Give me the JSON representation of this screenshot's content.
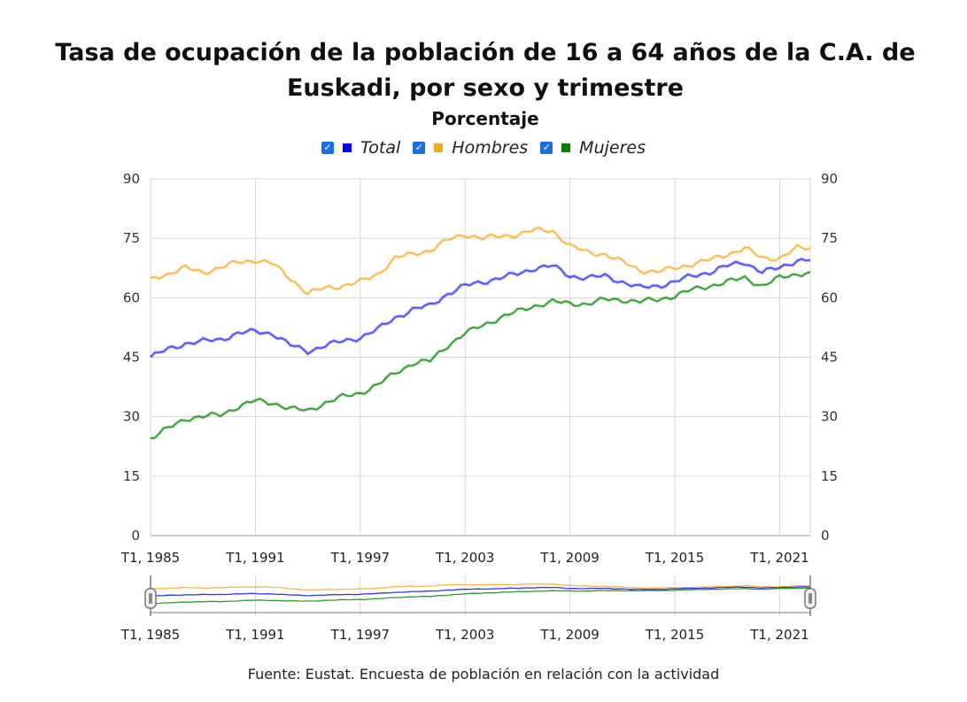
{
  "title_line1": "Tasa de ocupación de la población de 16 a 64 años de la C.A. de",
  "title_line2": "Euskadi, por sexo y trimestre",
  "subtitle": "Porcentaje",
  "source": "Fuente: Eustat. Encuesta de población en relación con la actividad",
  "legend": [
    {
      "name": "Total",
      "color": "#0000ff",
      "checked": true
    },
    {
      "name": "Hombres",
      "color": "#f5a623",
      "checked": true
    },
    {
      "name": "Mujeres",
      "color": "#008000",
      "checked": true
    }
  ],
  "chart_data": {
    "type": "line",
    "title": "Tasa de ocupación de la población de 16 a 64 años de la C.A. de Euskadi, por sexo y trimestre",
    "subtitle": "Porcentaje",
    "ylim": [
      0,
      90
    ],
    "yticks": [
      0,
      15,
      30,
      45,
      60,
      75,
      90
    ],
    "x_range": [
      "T1, 1985",
      "T4, 2022"
    ],
    "x_ticks": [
      "T1, 1985",
      "T1, 1991",
      "T1, 1997",
      "T1, 2003",
      "T1, 2009",
      "T1, 2015",
      "T1, 2021"
    ],
    "grid": true,
    "legend_position": "top",
    "navigator": true,
    "series": [
      {
        "name": "Total",
        "color": "#0000ff",
        "points": [
          [
            "T1, 1985",
            45
          ],
          [
            "T1, 1986",
            47
          ],
          [
            "T1, 1987",
            48.5
          ],
          [
            "T1, 1988",
            49
          ],
          [
            "T1, 1989",
            49.5
          ],
          [
            "T1, 1990",
            51
          ],
          [
            "T1, 1991",
            51.5
          ],
          [
            "T1, 1992",
            51
          ],
          [
            "T1, 1993",
            48
          ],
          [
            "T1, 1994",
            46.5
          ],
          [
            "T1, 1995",
            48
          ],
          [
            "T1, 1996",
            49
          ],
          [
            "T1, 1997",
            50
          ],
          [
            "T1, 1998",
            52
          ],
          [
            "T1, 1999",
            55
          ],
          [
            "T1, 2000",
            57
          ],
          [
            "T1, 2001",
            58
          ],
          [
            "T1, 2002",
            61
          ],
          [
            "T1, 2003",
            63
          ],
          [
            "T1, 2004",
            64
          ],
          [
            "T1, 2005",
            65
          ],
          [
            "T1, 2006",
            66
          ],
          [
            "T1, 2007",
            67.5
          ],
          [
            "T1, 2008",
            68
          ],
          [
            "T1, 2009",
            65.5
          ],
          [
            "T1, 2010",
            65
          ],
          [
            "T1, 2011",
            65.5
          ],
          [
            "T1, 2012",
            64
          ],
          [
            "T1, 2013",
            62.5
          ],
          [
            "T1, 2014",
            63
          ],
          [
            "T1, 2015",
            64
          ],
          [
            "T1, 2016",
            65.5
          ],
          [
            "T1, 2017",
            66.5
          ],
          [
            "T1, 2018",
            68
          ],
          [
            "T1, 2019",
            69
          ],
          [
            "T1, 2020",
            66.5
          ],
          [
            "T1, 2021",
            67.5
          ],
          [
            "T1, 2022",
            69.5
          ],
          [
            "T4, 2022",
            69.5
          ]
        ]
      },
      {
        "name": "Hombres",
        "color": "#f5a623",
        "points": [
          [
            "T1, 1985",
            65
          ],
          [
            "T1, 1986",
            66
          ],
          [
            "T1, 1987",
            67.5
          ],
          [
            "T1, 1988",
            66.5
          ],
          [
            "T1, 1989",
            67.5
          ],
          [
            "T1, 1990",
            69
          ],
          [
            "T1, 1991",
            69.5
          ],
          [
            "T1, 1992",
            68.5
          ],
          [
            "T1, 1993",
            65
          ],
          [
            "T1, 1994",
            61
          ],
          [
            "T1, 1995",
            62.5
          ],
          [
            "T1, 1996",
            63
          ],
          [
            "T1, 1997",
            64
          ],
          [
            "T1, 1998",
            66
          ],
          [
            "T1, 1999",
            70
          ],
          [
            "T1, 2000",
            71
          ],
          [
            "T1, 2001",
            72
          ],
          [
            "T1, 2002",
            74.5
          ],
          [
            "T1, 2003",
            76
          ],
          [
            "T1, 2004",
            75
          ],
          [
            "T1, 2005",
            75.5
          ],
          [
            "T1, 2006",
            76
          ],
          [
            "T1, 2007",
            77
          ],
          [
            "T1, 2008",
            77
          ],
          [
            "T1, 2009",
            73
          ],
          [
            "T1, 2010",
            71.5
          ],
          [
            "T1, 2011",
            71
          ],
          [
            "T1, 2012",
            69
          ],
          [
            "T1, 2013",
            67
          ],
          [
            "T1, 2014",
            66.5
          ],
          [
            "T1, 2015",
            67.5
          ],
          [
            "T1, 2016",
            68.5
          ],
          [
            "T1, 2017",
            69.5
          ],
          [
            "T1, 2018",
            71
          ],
          [
            "T1, 2019",
            72.5
          ],
          [
            "T1, 2020",
            70
          ],
          [
            "T1, 2021",
            70
          ],
          [
            "T1, 2022",
            72.5
          ],
          [
            "T4, 2022",
            72.5
          ]
        ]
      },
      {
        "name": "Mujeres",
        "color": "#008000",
        "points": [
          [
            "T1, 1985",
            24.5
          ],
          [
            "T1, 1986",
            27
          ],
          [
            "T1, 1987",
            29.5
          ],
          [
            "T1, 1988",
            30
          ],
          [
            "T1, 1989",
            30.5
          ],
          [
            "T1, 1990",
            32.5
          ],
          [
            "T1, 1991",
            34
          ],
          [
            "T1, 1992",
            33.5
          ],
          [
            "T1, 1993",
            32
          ],
          [
            "T1, 1994",
            31.5
          ],
          [
            "T1, 1995",
            33.5
          ],
          [
            "T1, 1996",
            35
          ],
          [
            "T1, 1997",
            36
          ],
          [
            "T1, 1998",
            38
          ],
          [
            "T1, 1999",
            41
          ],
          [
            "T1, 2000",
            43.5
          ],
          [
            "T1, 2001",
            44
          ],
          [
            "T1, 2002",
            48
          ],
          [
            "T1, 2003",
            51
          ],
          [
            "T1, 2004",
            53
          ],
          [
            "T1, 2005",
            55
          ],
          [
            "T1, 2006",
            56.5
          ],
          [
            "T1, 2007",
            58
          ],
          [
            "T1, 2008",
            59
          ],
          [
            "T1, 2009",
            58.5
          ],
          [
            "T1, 2010",
            58.5
          ],
          [
            "T1, 2011",
            59.5
          ],
          [
            "T1, 2012",
            59.5
          ],
          [
            "T1, 2013",
            59
          ],
          [
            "T1, 2014",
            59.5
          ],
          [
            "T1, 2015",
            60.5
          ],
          [
            "T1, 2016",
            62
          ],
          [
            "T1, 2017",
            63
          ],
          [
            "T1, 2018",
            64
          ],
          [
            "T1, 2019",
            65
          ],
          [
            "T1, 2020",
            63
          ],
          [
            "T1, 2021",
            65
          ],
          [
            "T1, 2022",
            66
          ],
          [
            "T4, 2022",
            66.5
          ]
        ]
      }
    ]
  }
}
